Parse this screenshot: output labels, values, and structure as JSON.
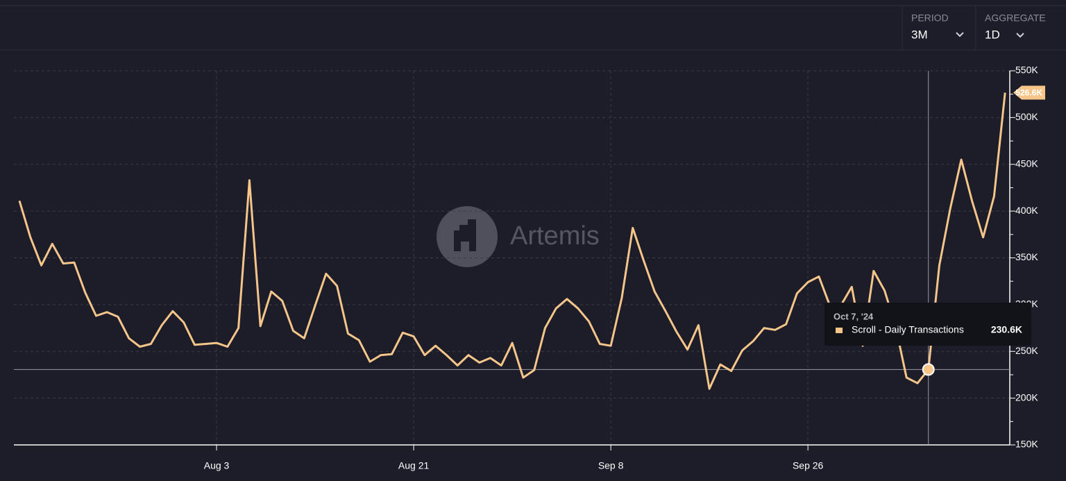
{
  "controls": {
    "period_label": "PERIOD",
    "period_value": "3M",
    "aggregate_label": "AGGREGATE",
    "aggregate_value": "1D"
  },
  "watermark": "Artemis",
  "chart_data": {
    "type": "line",
    "categories": [
      null,
      null,
      null,
      null,
      null,
      null,
      null,
      null,
      null,
      null,
      null,
      null,
      null,
      null,
      null,
      null,
      null,
      null,
      "Aug 3",
      null,
      null,
      null,
      null,
      null,
      null,
      null,
      null,
      null,
      null,
      null,
      null,
      null,
      null,
      null,
      null,
      null,
      "Aug 21",
      null,
      null,
      null,
      null,
      null,
      null,
      null,
      null,
      null,
      null,
      null,
      null,
      null,
      null,
      null,
      null,
      null,
      "Sep 8",
      null,
      null,
      null,
      null,
      null,
      null,
      null,
      null,
      null,
      null,
      null,
      null,
      null,
      null,
      null,
      null,
      null,
      "Sep 26",
      null,
      null,
      null,
      null,
      null,
      null,
      null,
      null,
      null,
      null,
      null,
      null,
      null,
      null,
      null,
      null,
      null,
      null
    ],
    "series": [
      {
        "name": "Scroll - Daily Transactions",
        "color": "#f5c58a",
        "values": [
          411000,
          372000,
          342000,
          365000,
          344000,
          345000,
          313000,
          288000,
          292000,
          287000,
          264000,
          255000,
          258000,
          278000,
          293000,
          281000,
          257000,
          258000,
          259000,
          255000,
          275000,
          433000,
          277000,
          314000,
          304000,
          272000,
          264000,
          299000,
          333000,
          320000,
          269000,
          262000,
          239000,
          246000,
          247000,
          270000,
          266000,
          246000,
          256000,
          246000,
          235000,
          246000,
          238000,
          243000,
          235000,
          259000,
          222000,
          230000,
          275000,
          296000,
          306000,
          296000,
          282000,
          258000,
          256000,
          307000,
          382000,
          347000,
          314000,
          293000,
          271000,
          252000,
          278000,
          210000,
          236000,
          229000,
          251000,
          261000,
          275000,
          273000,
          279000,
          312000,
          324000,
          330000,
          299000,
          299000,
          319000,
          256000,
          336000,
          315000,
          277000,
          222000,
          216000,
          230600,
          342000,
          403000,
          455000,
          410000,
          372000,
          416000,
          526600
        ],
        "value_labels": [
          null,
          null,
          null,
          null,
          null,
          null,
          null,
          null,
          null,
          null,
          null,
          null,
          null,
          null,
          null,
          null,
          null,
          null,
          null,
          null,
          null,
          null,
          null,
          null,
          null,
          null,
          null,
          null,
          null,
          null,
          null,
          null,
          null,
          null,
          null,
          null,
          null,
          null,
          null,
          null,
          null,
          null,
          null,
          null,
          null,
          null,
          null,
          null,
          null,
          null,
          null,
          null,
          null,
          null,
          null,
          null,
          null,
          null,
          null,
          null,
          null,
          null,
          null,
          null,
          null,
          null,
          null,
          null,
          null,
          null,
          null,
          null,
          null,
          null,
          null,
          null,
          null,
          null,
          null,
          null,
          null,
          null,
          null,
          "230.6K",
          null,
          null,
          null,
          null,
          null,
          null,
          "526.6K"
        ]
      }
    ],
    "tooltip_date": "Oct 7, '24",
    "ylim": [
      150000,
      550000
    ],
    "yticks": [
      {
        "value": 150000,
        "label": "150K"
      },
      {
        "value": 200000,
        "label": "200K"
      },
      {
        "value": 250000,
        "label": "250K"
      },
      {
        "value": 300000,
        "label": "300K"
      },
      {
        "value": 350000,
        "label": "350K"
      },
      {
        "value": 400000,
        "label": "400K"
      },
      {
        "value": 450000,
        "label": "450K"
      },
      {
        "value": 500000,
        "label": "500K"
      },
      {
        "value": 550000,
        "label": "550K"
      }
    ],
    "grid": true
  }
}
